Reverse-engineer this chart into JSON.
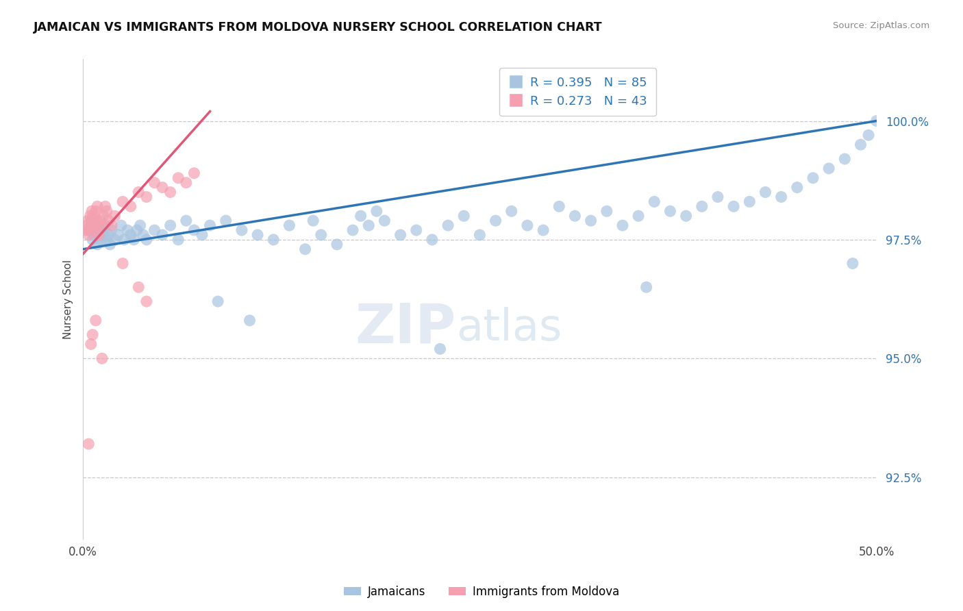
{
  "title": "JAMAICAN VS IMMIGRANTS FROM MOLDOVA NURSERY SCHOOL CORRELATION CHART",
  "source": "Source: ZipAtlas.com",
  "ylabel": "Nursery School",
  "yticks": [
    92.5,
    95.0,
    97.5,
    100.0
  ],
  "ytick_labels": [
    "92.5%",
    "95.0%",
    "97.5%",
    "100.0%"
  ],
  "ylim": [
    91.2,
    101.3
  ],
  "xlim": [
    0.0,
    50.0
  ],
  "blue_R": 0.395,
  "blue_N": 85,
  "pink_R": 0.273,
  "pink_N": 43,
  "blue_color": "#a8c4e0",
  "blue_line_color": "#2e75b6",
  "pink_color": "#f4a0b0",
  "pink_line_color": "#e05878",
  "legend_label_1": "Jamaicans",
  "legend_label_2": "Immigrants from Moldova",
  "watermark_zip": "ZIP",
  "watermark_atlas": "atlas",
  "blue_scatter_x": [
    0.4,
    0.5,
    0.6,
    0.7,
    0.8,
    0.9,
    1.0,
    1.1,
    1.2,
    1.3,
    1.4,
    1.5,
    1.6,
    1.7,
    1.8,
    2.0,
    2.2,
    2.4,
    2.6,
    2.8,
    3.0,
    3.2,
    3.4,
    3.6,
    3.8,
    4.0,
    4.5,
    5.0,
    5.5,
    6.0,
    6.5,
    7.0,
    7.5,
    8.0,
    9.0,
    10.0,
    11.0,
    12.0,
    13.0,
    14.0,
    14.5,
    15.0,
    16.0,
    17.0,
    17.5,
    18.0,
    18.5,
    19.0,
    20.0,
    21.0,
    22.0,
    23.0,
    24.0,
    25.0,
    26.0,
    27.0,
    28.0,
    29.0,
    30.0,
    31.0,
    32.0,
    33.0,
    34.0,
    35.0,
    36.0,
    37.0,
    38.0,
    39.0,
    40.0,
    41.0,
    42.0,
    43.0,
    44.0,
    45.0,
    46.0,
    47.0,
    48.0,
    49.0,
    49.5,
    50.0,
    8.5,
    10.5,
    22.5,
    35.5,
    48.5
  ],
  "blue_scatter_y": [
    97.7,
    97.9,
    97.5,
    97.6,
    97.8,
    97.4,
    97.6,
    97.5,
    97.7,
    97.6,
    97.8,
    97.5,
    97.6,
    97.4,
    97.7,
    97.5,
    97.6,
    97.8,
    97.5,
    97.7,
    97.6,
    97.5,
    97.7,
    97.8,
    97.6,
    97.5,
    97.7,
    97.6,
    97.8,
    97.5,
    97.9,
    97.7,
    97.6,
    97.8,
    97.9,
    97.7,
    97.6,
    97.5,
    97.8,
    97.3,
    97.9,
    97.6,
    97.4,
    97.7,
    98.0,
    97.8,
    98.1,
    97.9,
    97.6,
    97.7,
    97.5,
    97.8,
    98.0,
    97.6,
    97.9,
    98.1,
    97.8,
    97.7,
    98.2,
    98.0,
    97.9,
    98.1,
    97.8,
    98.0,
    98.3,
    98.1,
    98.0,
    98.2,
    98.4,
    98.2,
    98.3,
    98.5,
    98.4,
    98.6,
    98.8,
    99.0,
    99.2,
    99.5,
    99.7,
    100.0,
    96.2,
    95.8,
    95.2,
    96.5,
    97.0
  ],
  "pink_scatter_x": [
    0.2,
    0.25,
    0.3,
    0.35,
    0.4,
    0.45,
    0.5,
    0.55,
    0.6,
    0.65,
    0.7,
    0.75,
    0.8,
    0.85,
    0.9,
    0.95,
    1.0,
    1.1,
    1.2,
    1.3,
    1.4,
    1.5,
    1.6,
    1.8,
    2.0,
    2.5,
    3.0,
    3.5,
    4.0,
    4.5,
    5.0,
    5.5,
    6.0,
    6.5,
    7.0,
    2.5,
    3.5,
    4.0,
    0.8,
    0.6,
    0.5,
    1.2,
    0.35
  ],
  "pink_scatter_y": [
    97.7,
    97.8,
    97.9,
    97.6,
    97.7,
    98.0,
    97.8,
    98.1,
    97.9,
    97.7,
    98.0,
    97.8,
    98.1,
    97.9,
    98.2,
    97.8,
    97.6,
    97.9,
    97.8,
    98.0,
    98.2,
    98.1,
    97.9,
    97.8,
    98.0,
    98.3,
    98.2,
    98.5,
    98.4,
    98.7,
    98.6,
    98.5,
    98.8,
    98.7,
    98.9,
    97.0,
    96.5,
    96.2,
    95.8,
    95.5,
    95.3,
    95.0,
    93.2
  ]
}
